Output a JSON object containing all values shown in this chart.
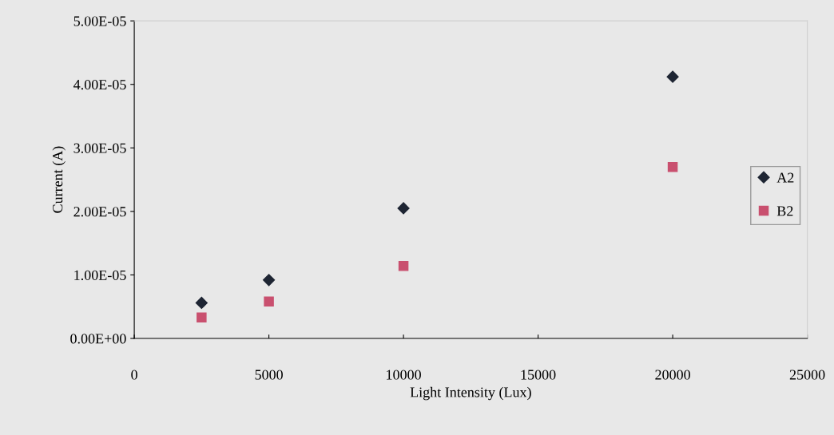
{
  "chart_data": {
    "type": "scatter",
    "xlabel": "Light Intensity (Lux)",
    "ylabel": "Current (A)",
    "x": [
      2500,
      5000,
      10000,
      20000
    ],
    "series": [
      {
        "name": "A2",
        "color": "#1e2533",
        "marker": "diamond",
        "values": [
          5.6e-06,
          9.2e-06,
          2.05e-05,
          4.12e-05
        ]
      },
      {
        "name": "B2",
        "color": "#c9506f",
        "marker": "square",
        "values": [
          3.3e-06,
          5.8e-06,
          1.14e-05,
          2.7e-05
        ]
      }
    ],
    "xlim": [
      0,
      25000
    ],
    "xticks": [
      0,
      5000,
      10000,
      15000,
      20000,
      25000
    ],
    "ylim": [
      0,
      5e-05
    ],
    "yticks": [
      {
        "value": 0,
        "label": "0.00E+00"
      },
      {
        "value": 1e-05,
        "label": "1.00E-05"
      },
      {
        "value": 2e-05,
        "label": "2.00E-05"
      },
      {
        "value": 3e-05,
        "label": "3.00E-05"
      },
      {
        "value": 4e-05,
        "label": "4.00E-05"
      },
      {
        "value": 5e-05,
        "label": "5.00E-05"
      }
    ],
    "grid": false,
    "legend": "right"
  }
}
